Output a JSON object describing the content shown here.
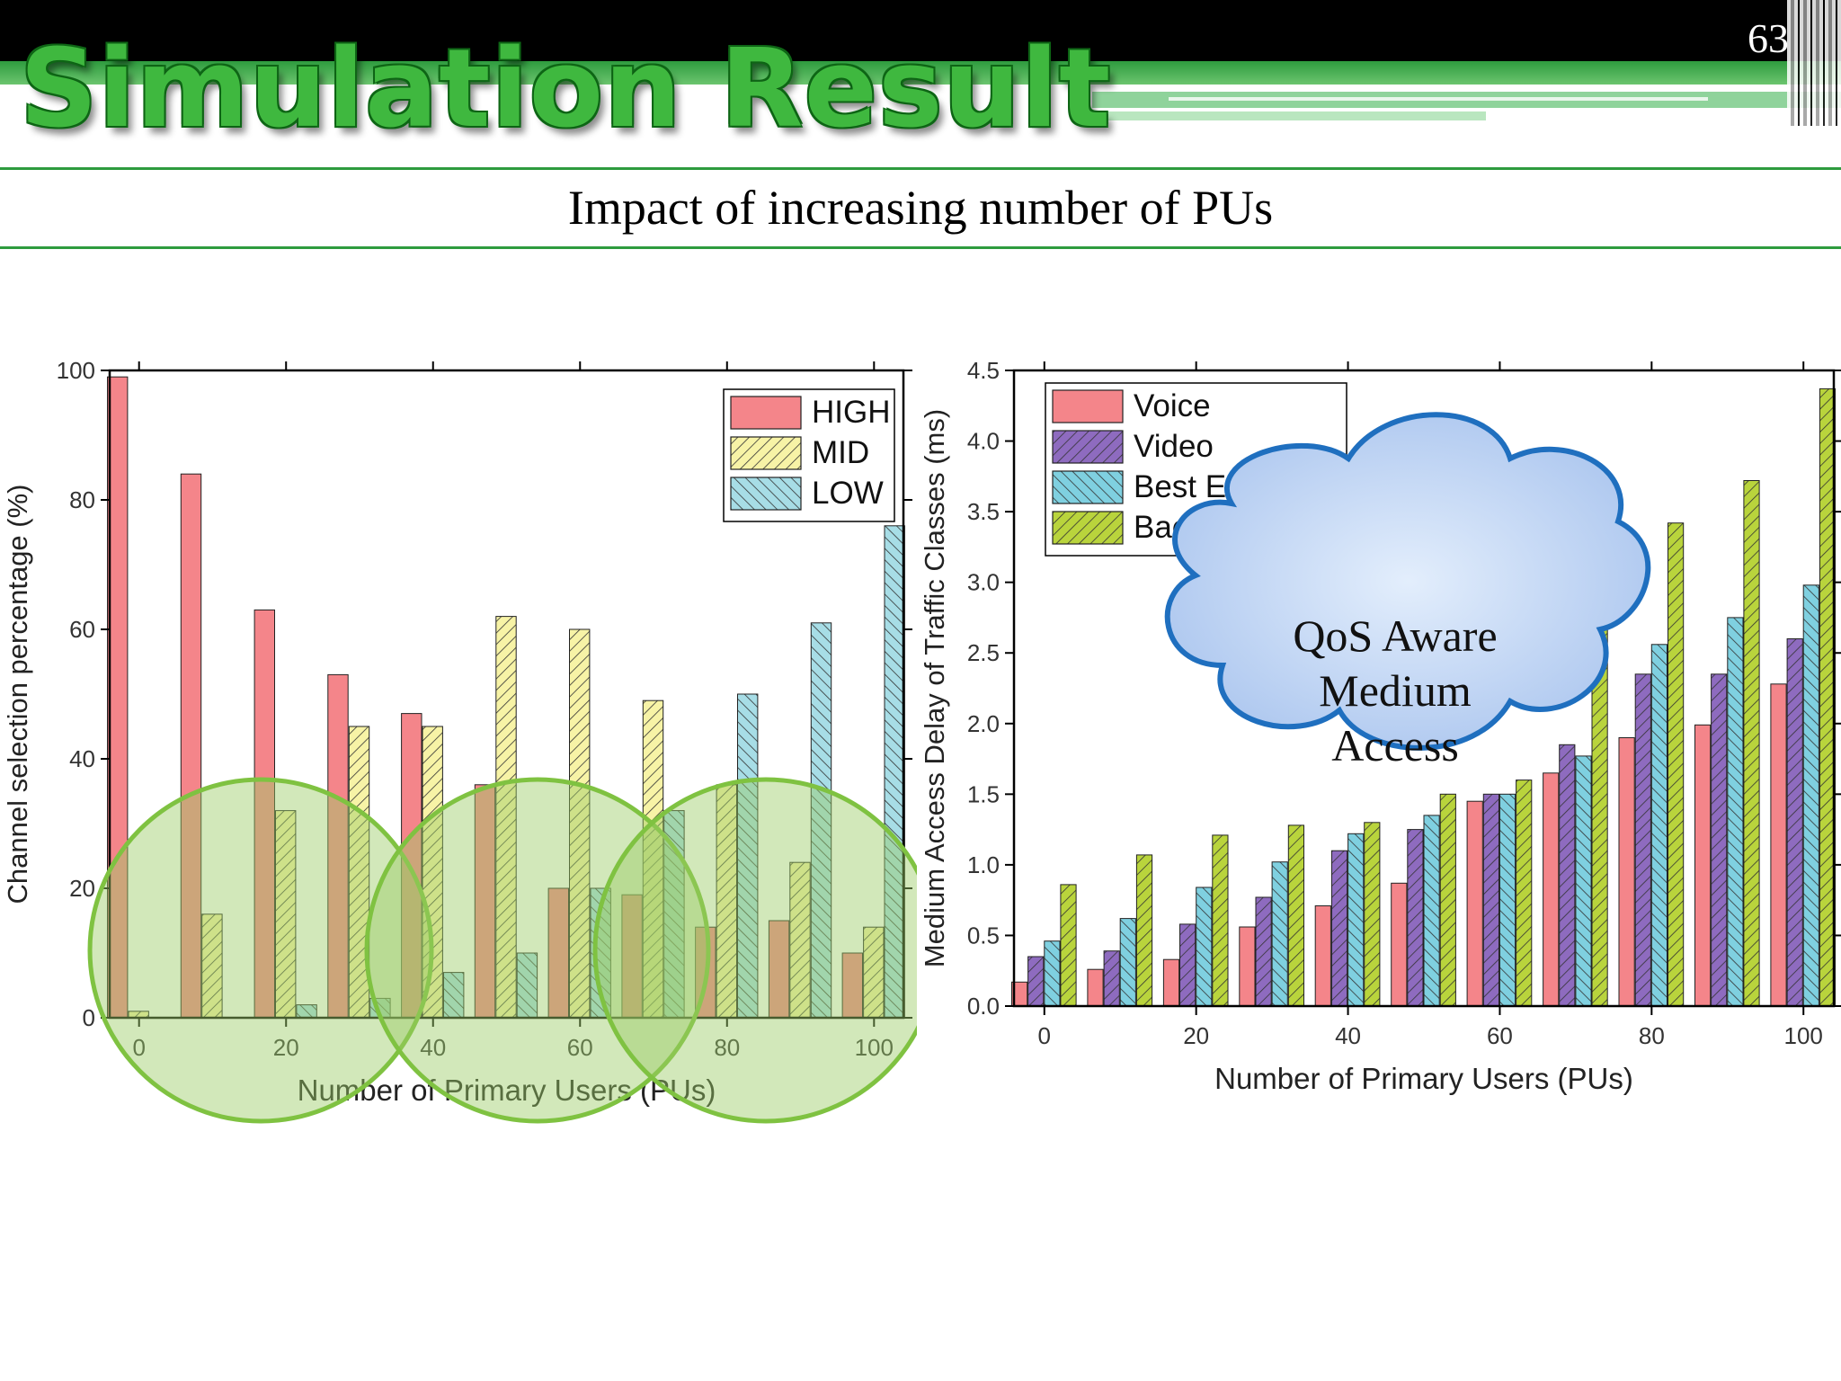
{
  "slide": {
    "number": "63",
    "title": "Simulation Result",
    "subtitle": "Impact of increasing number of PUs",
    "callout": [
      "QoS Aware",
      "Medium",
      "Access"
    ]
  },
  "chart_data": [
    {
      "type": "bar",
      "xlabel": "Number of Primary Users (PUs)",
      "ylabel": "Channel selection percentage (%)",
      "x": [
        0,
        10,
        20,
        30,
        40,
        50,
        60,
        70,
        80,
        90,
        100
      ],
      "xticks": [
        "0",
        "20",
        "40",
        "60",
        "80",
        "100"
      ],
      "yticks": [
        "0",
        "20",
        "40",
        "60",
        "80",
        "100"
      ],
      "xlim": [
        -4,
        104
      ],
      "ylim": [
        0,
        100
      ],
      "legend_position": "top-right",
      "series": [
        {
          "name": "HIGH",
          "color": "#f4858a",
          "pattern": "solid",
          "values": [
            99,
            84,
            63,
            53,
            47,
            36,
            20,
            19,
            14,
            15,
            10
          ]
        },
        {
          "name": "MID",
          "color": "#f7f3a6",
          "pattern": "diag",
          "values": [
            1,
            16,
            32,
            45,
            45,
            62,
            60,
            49,
            36,
            24,
            14
          ]
        },
        {
          "name": "LOW",
          "color": "#a7dde6",
          "pattern": "backdiag",
          "values": [
            0,
            0,
            2,
            3,
            7,
            10,
            20,
            32,
            50,
            61,
            76
          ]
        }
      ],
      "overlay": {
        "shape": "circles",
        "count": 3,
        "color": "#9ccc65"
      }
    },
    {
      "type": "bar",
      "xlabel": "Number of Primary Users (PUs)",
      "ylabel": "Medium Access Delay of Traffic Classes (ms)",
      "x": [
        0,
        10,
        20,
        30,
        40,
        50,
        60,
        70,
        80,
        90,
        100
      ],
      "xticks": [
        "0",
        "20",
        "40",
        "60",
        "80",
        "100"
      ],
      "yticks": [
        "0.0",
        "0.5",
        "1.0",
        "1.5",
        "2.0",
        "2.5",
        "3.0",
        "3.5",
        "4.0",
        "4.5"
      ],
      "xlim": [
        -4,
        104
      ],
      "ylim": [
        0,
        4.5
      ],
      "legend_position": "top-left",
      "series": [
        {
          "name": "Voice",
          "color": "#f4858a",
          "pattern": "solid",
          "values": [
            0.17,
            0.26,
            0.33,
            0.56,
            0.71,
            0.87,
            1.45,
            1.65,
            1.9,
            1.99,
            2.28
          ]
        },
        {
          "name": "Video",
          "color": "#8e6bbf",
          "pattern": "diag",
          "values": [
            0.35,
            0.39,
            0.58,
            0.77,
            1.1,
            1.25,
            1.5,
            1.85,
            2.35,
            2.35,
            2.6
          ]
        },
        {
          "name": "Best Effort",
          "color": "#7fd0e0",
          "pattern": "backdiag",
          "values": [
            0.46,
            0.62,
            0.84,
            1.02,
            1.22,
            1.35,
            1.5,
            1.77,
            2.56,
            2.75,
            2.98
          ]
        },
        {
          "name": "Background",
          "color": "#b9d43c",
          "pattern": "diag",
          "values": [
            0.86,
            1.07,
            1.21,
            1.28,
            1.3,
            1.5,
            1.6,
            3.06,
            3.42,
            3.72,
            4.37
          ]
        }
      ]
    }
  ]
}
